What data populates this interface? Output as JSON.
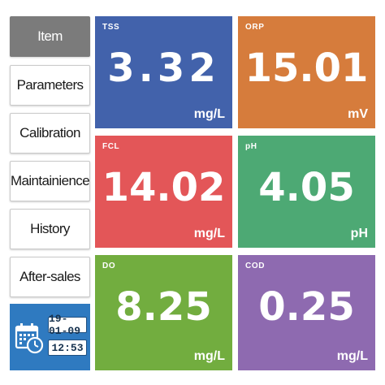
{
  "menu": {
    "items": [
      {
        "label": "Item",
        "active": true
      },
      {
        "label": "Parameters",
        "active": false
      },
      {
        "label": "Calibration",
        "active": false
      },
      {
        "label": "Maintainience",
        "active": false
      },
      {
        "label": "History",
        "active": false
      },
      {
        "label": "After-sales",
        "active": false
      }
    ]
  },
  "clock": {
    "date": "19-01-09",
    "time": "12:53",
    "icon": "calendar-clock-icon"
  },
  "tiles": [
    {
      "label": "TSS",
      "value": "3.32",
      "unit": "mg/L",
      "color": "#4262ab"
    },
    {
      "label": "ORP",
      "value": "15.01",
      "unit": "mV",
      "color": "#d67c3c"
    },
    {
      "label": "FCL",
      "value": "14.02",
      "unit": "mg/L",
      "color": "#e35658"
    },
    {
      "label": "pH",
      "value": "4.05",
      "unit": "pH",
      "color": "#4da974"
    },
    {
      "label": "DO",
      "value": "8.25",
      "unit": "mg/L",
      "color": "#72ad3f"
    },
    {
      "label": "COD",
      "value": "0.25",
      "unit": "mg/L",
      "color": "#8e6ab0"
    }
  ]
}
